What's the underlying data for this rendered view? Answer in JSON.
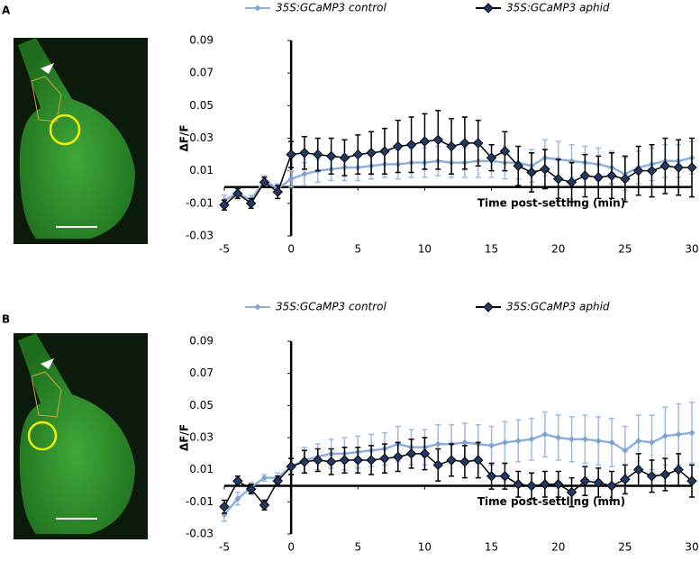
{
  "chart_data": [
    {
      "type": "line",
      "panel": "A",
      "y_label": "ΔF/F",
      "x_label": "Time post-settling (min)",
      "x": [
        -5,
        -4,
        -3,
        -2,
        -1,
        0,
        1,
        2,
        3,
        4,
        5,
        6,
        7,
        8,
        9,
        10,
        11,
        12,
        13,
        14,
        15,
        16,
        17,
        18,
        19,
        20,
        21,
        22,
        23,
        24,
        25,
        26,
        27,
        28,
        29,
        30
      ],
      "xlim": [
        -5,
        30
      ],
      "xticks": [
        -5,
        0,
        5,
        10,
        15,
        20,
        25,
        30
      ],
      "ylim": [
        -0.03,
        0.09
      ],
      "yticks": [
        -0.03,
        -0.01,
        0.01,
        0.03,
        0.05,
        0.07,
        0.09
      ],
      "series": [
        {
          "name": "35S:GCaMP3 control",
          "color": "#7ea2d4",
          "values": [
            -0.008,
            -0.004,
            -0.008,
            0.004,
            -0.001,
            0.005,
            0.008,
            0.01,
            0.011,
            0.012,
            0.012,
            0.013,
            0.014,
            0.014,
            0.015,
            0.015,
            0.016,
            0.015,
            0.015,
            0.016,
            0.016,
            0.015,
            0.015,
            0.013,
            0.018,
            0.017,
            0.016,
            0.015,
            0.014,
            0.012,
            0.008,
            0.012,
            0.014,
            0.016,
            0.016,
            0.018
          ],
          "errors": [
            0.003,
            0.003,
            0.003,
            0.003,
            0.003,
            0.005,
            0.007,
            0.007,
            0.007,
            0.008,
            0.008,
            0.008,
            0.008,
            0.009,
            0.009,
            0.009,
            0.009,
            0.009,
            0.009,
            0.01,
            0.01,
            0.01,
            0.01,
            0.01,
            0.011,
            0.011,
            0.01,
            0.01,
            0.01,
            0.01,
            0.01,
            0.01,
            0.01,
            0.01,
            0.01,
            0.01
          ]
        },
        {
          "name": "35S:GCaMP3 aphid",
          "color": "#1f3a66",
          "values": [
            -0.011,
            -0.004,
            -0.01,
            0.003,
            -0.003,
            0.02,
            0.021,
            0.02,
            0.019,
            0.018,
            0.02,
            0.021,
            0.022,
            0.025,
            0.026,
            0.028,
            0.029,
            0.025,
            0.027,
            0.027,
            0.018,
            0.022,
            0.013,
            0.009,
            0.011,
            0.005,
            0.003,
            0.007,
            0.006,
            0.007,
            0.005,
            0.01,
            0.01,
            0.013,
            0.012,
            0.012
          ],
          "errors": [
            0.003,
            0.003,
            0.003,
            0.003,
            0.004,
            0.008,
            0.01,
            0.01,
            0.011,
            0.011,
            0.012,
            0.013,
            0.014,
            0.016,
            0.017,
            0.017,
            0.018,
            0.017,
            0.016,
            0.014,
            0.008,
            0.012,
            0.012,
            0.012,
            0.012,
            0.012,
            0.012,
            0.013,
            0.013,
            0.014,
            0.014,
            0.015,
            0.016,
            0.017,
            0.017,
            0.018
          ]
        }
      ]
    },
    {
      "type": "line",
      "panel": "B",
      "y_label": "ΔF/F",
      "x_label": "Time post-settling (min)",
      "x": [
        -5,
        -4,
        -3,
        -2,
        -1,
        0,
        1,
        2,
        3,
        4,
        5,
        6,
        7,
        8,
        9,
        10,
        11,
        12,
        13,
        14,
        15,
        16,
        17,
        18,
        19,
        20,
        21,
        22,
        23,
        24,
        25,
        26,
        27,
        28,
        29,
        30
      ],
      "xlim": [
        -5,
        30
      ],
      "xticks": [
        -5,
        0,
        5,
        10,
        15,
        20,
        25,
        30
      ],
      "ylim": [
        -0.03,
        0.09
      ],
      "yticks": [
        -0.03,
        -0.01,
        0.01,
        0.03,
        0.05,
        0.07,
        0.09
      ],
      "series": [
        {
          "name": "35S:GCaMP3 control",
          "color": "#7ea2d4",
          "values": [
            -0.018,
            -0.008,
            -0.001,
            0.005,
            0.005,
            0.012,
            0.016,
            0.018,
            0.02,
            0.02,
            0.021,
            0.022,
            0.023,
            0.026,
            0.024,
            0.024,
            0.026,
            0.026,
            0.027,
            0.026,
            0.025,
            0.027,
            0.028,
            0.029,
            0.032,
            0.03,
            0.029,
            0.029,
            0.028,
            0.027,
            0.022,
            0.028,
            0.027,
            0.031,
            0.032,
            0.033
          ],
          "errors": [
            0.004,
            0.004,
            0.003,
            0.002,
            0.003,
            0.005,
            0.008,
            0.008,
            0.009,
            0.01,
            0.01,
            0.01,
            0.01,
            0.011,
            0.011,
            0.011,
            0.012,
            0.012,
            0.012,
            0.012,
            0.012,
            0.013,
            0.013,
            0.013,
            0.014,
            0.014,
            0.014,
            0.015,
            0.015,
            0.015,
            0.015,
            0.016,
            0.017,
            0.018,
            0.019,
            0.019
          ]
        },
        {
          "name": "35S:GCaMP3 aphid",
          "color": "#1f3a66",
          "values": [
            -0.013,
            0.003,
            -0.002,
            -0.012,
            0.003,
            0.012,
            0.015,
            0.016,
            0.015,
            0.016,
            0.016,
            0.016,
            0.017,
            0.018,
            0.02,
            0.02,
            0.013,
            0.016,
            0.015,
            0.016,
            0.006,
            0.006,
            0.001,
            0,
            0.001,
            0.001,
            -0.004,
            0.003,
            0.002,
            0,
            0.004,
            0.01,
            0.006,
            0.007,
            0.01,
            0.003
          ],
          "errors": [
            0.004,
            0.003,
            0.003,
            0.003,
            0.003,
            0.005,
            0.007,
            0.007,
            0.008,
            0.008,
            0.008,
            0.009,
            0.009,
            0.009,
            0.009,
            0.01,
            0.01,
            0.01,
            0.01,
            0.011,
            0.008,
            0.008,
            0.008,
            0.008,
            0.008,
            0.008,
            0.009,
            0.009,
            0.009,
            0.009,
            0.009,
            0.01,
            0.01,
            0.01,
            0.01,
            0.01
          ]
        }
      ]
    }
  ]
}
